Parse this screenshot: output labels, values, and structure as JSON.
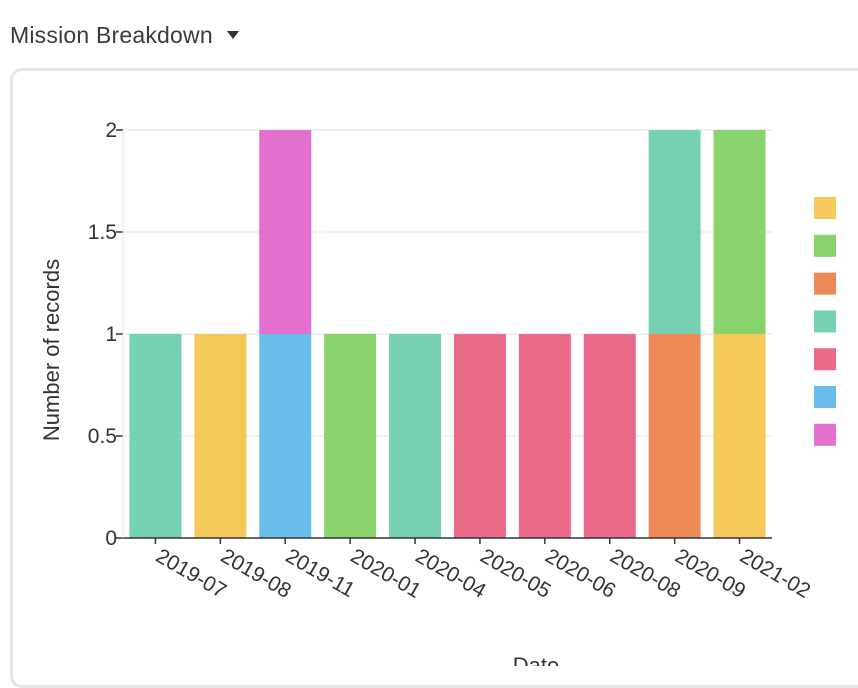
{
  "header": {
    "title": "Mission Breakdown",
    "dropdown_icon": "caret-down-icon"
  },
  "chart_data": {
    "type": "bar",
    "stacked": true,
    "categories": [
      "2019-07",
      "2019-08",
      "2019-11",
      "2020-01",
      "2020-04",
      "2020-05",
      "2020-06",
      "2020-08",
      "2020-09",
      "2021-02"
    ],
    "xlabel": "Date",
    "ylabel": "Number of records",
    "ylim": [
      0,
      2
    ],
    "yticks": [
      "0",
      "0.5",
      "1",
      "1.5",
      "2"
    ],
    "grid": true,
    "legend_placement": "right",
    "series": [
      {
        "color": "#F5C959",
        "values": [
          0,
          1,
          0,
          0,
          0,
          0,
          0,
          0,
          0,
          1
        ]
      },
      {
        "color": "#88D36C",
        "values": [
          0,
          0,
          0,
          1,
          0,
          0,
          0,
          0,
          0,
          1
        ]
      },
      {
        "color": "#ED8A57",
        "values": [
          0,
          0,
          0,
          0,
          0,
          0,
          0,
          0,
          1,
          0
        ]
      },
      {
        "color": "#76D1B3",
        "values": [
          1,
          0,
          0,
          0,
          1,
          0,
          0,
          0,
          1,
          0
        ]
      },
      {
        "color": "#EC6A89",
        "values": [
          0,
          0,
          0,
          0,
          0,
          1,
          1,
          1,
          0,
          0
        ]
      },
      {
        "color": "#6ABDEA",
        "values": [
          0,
          0,
          1,
          0,
          0,
          0,
          0,
          0,
          0,
          0
        ]
      },
      {
        "color": "#E36FCE",
        "values": [
          0,
          0,
          1,
          0,
          0,
          0,
          0,
          0,
          0,
          0
        ]
      }
    ]
  }
}
